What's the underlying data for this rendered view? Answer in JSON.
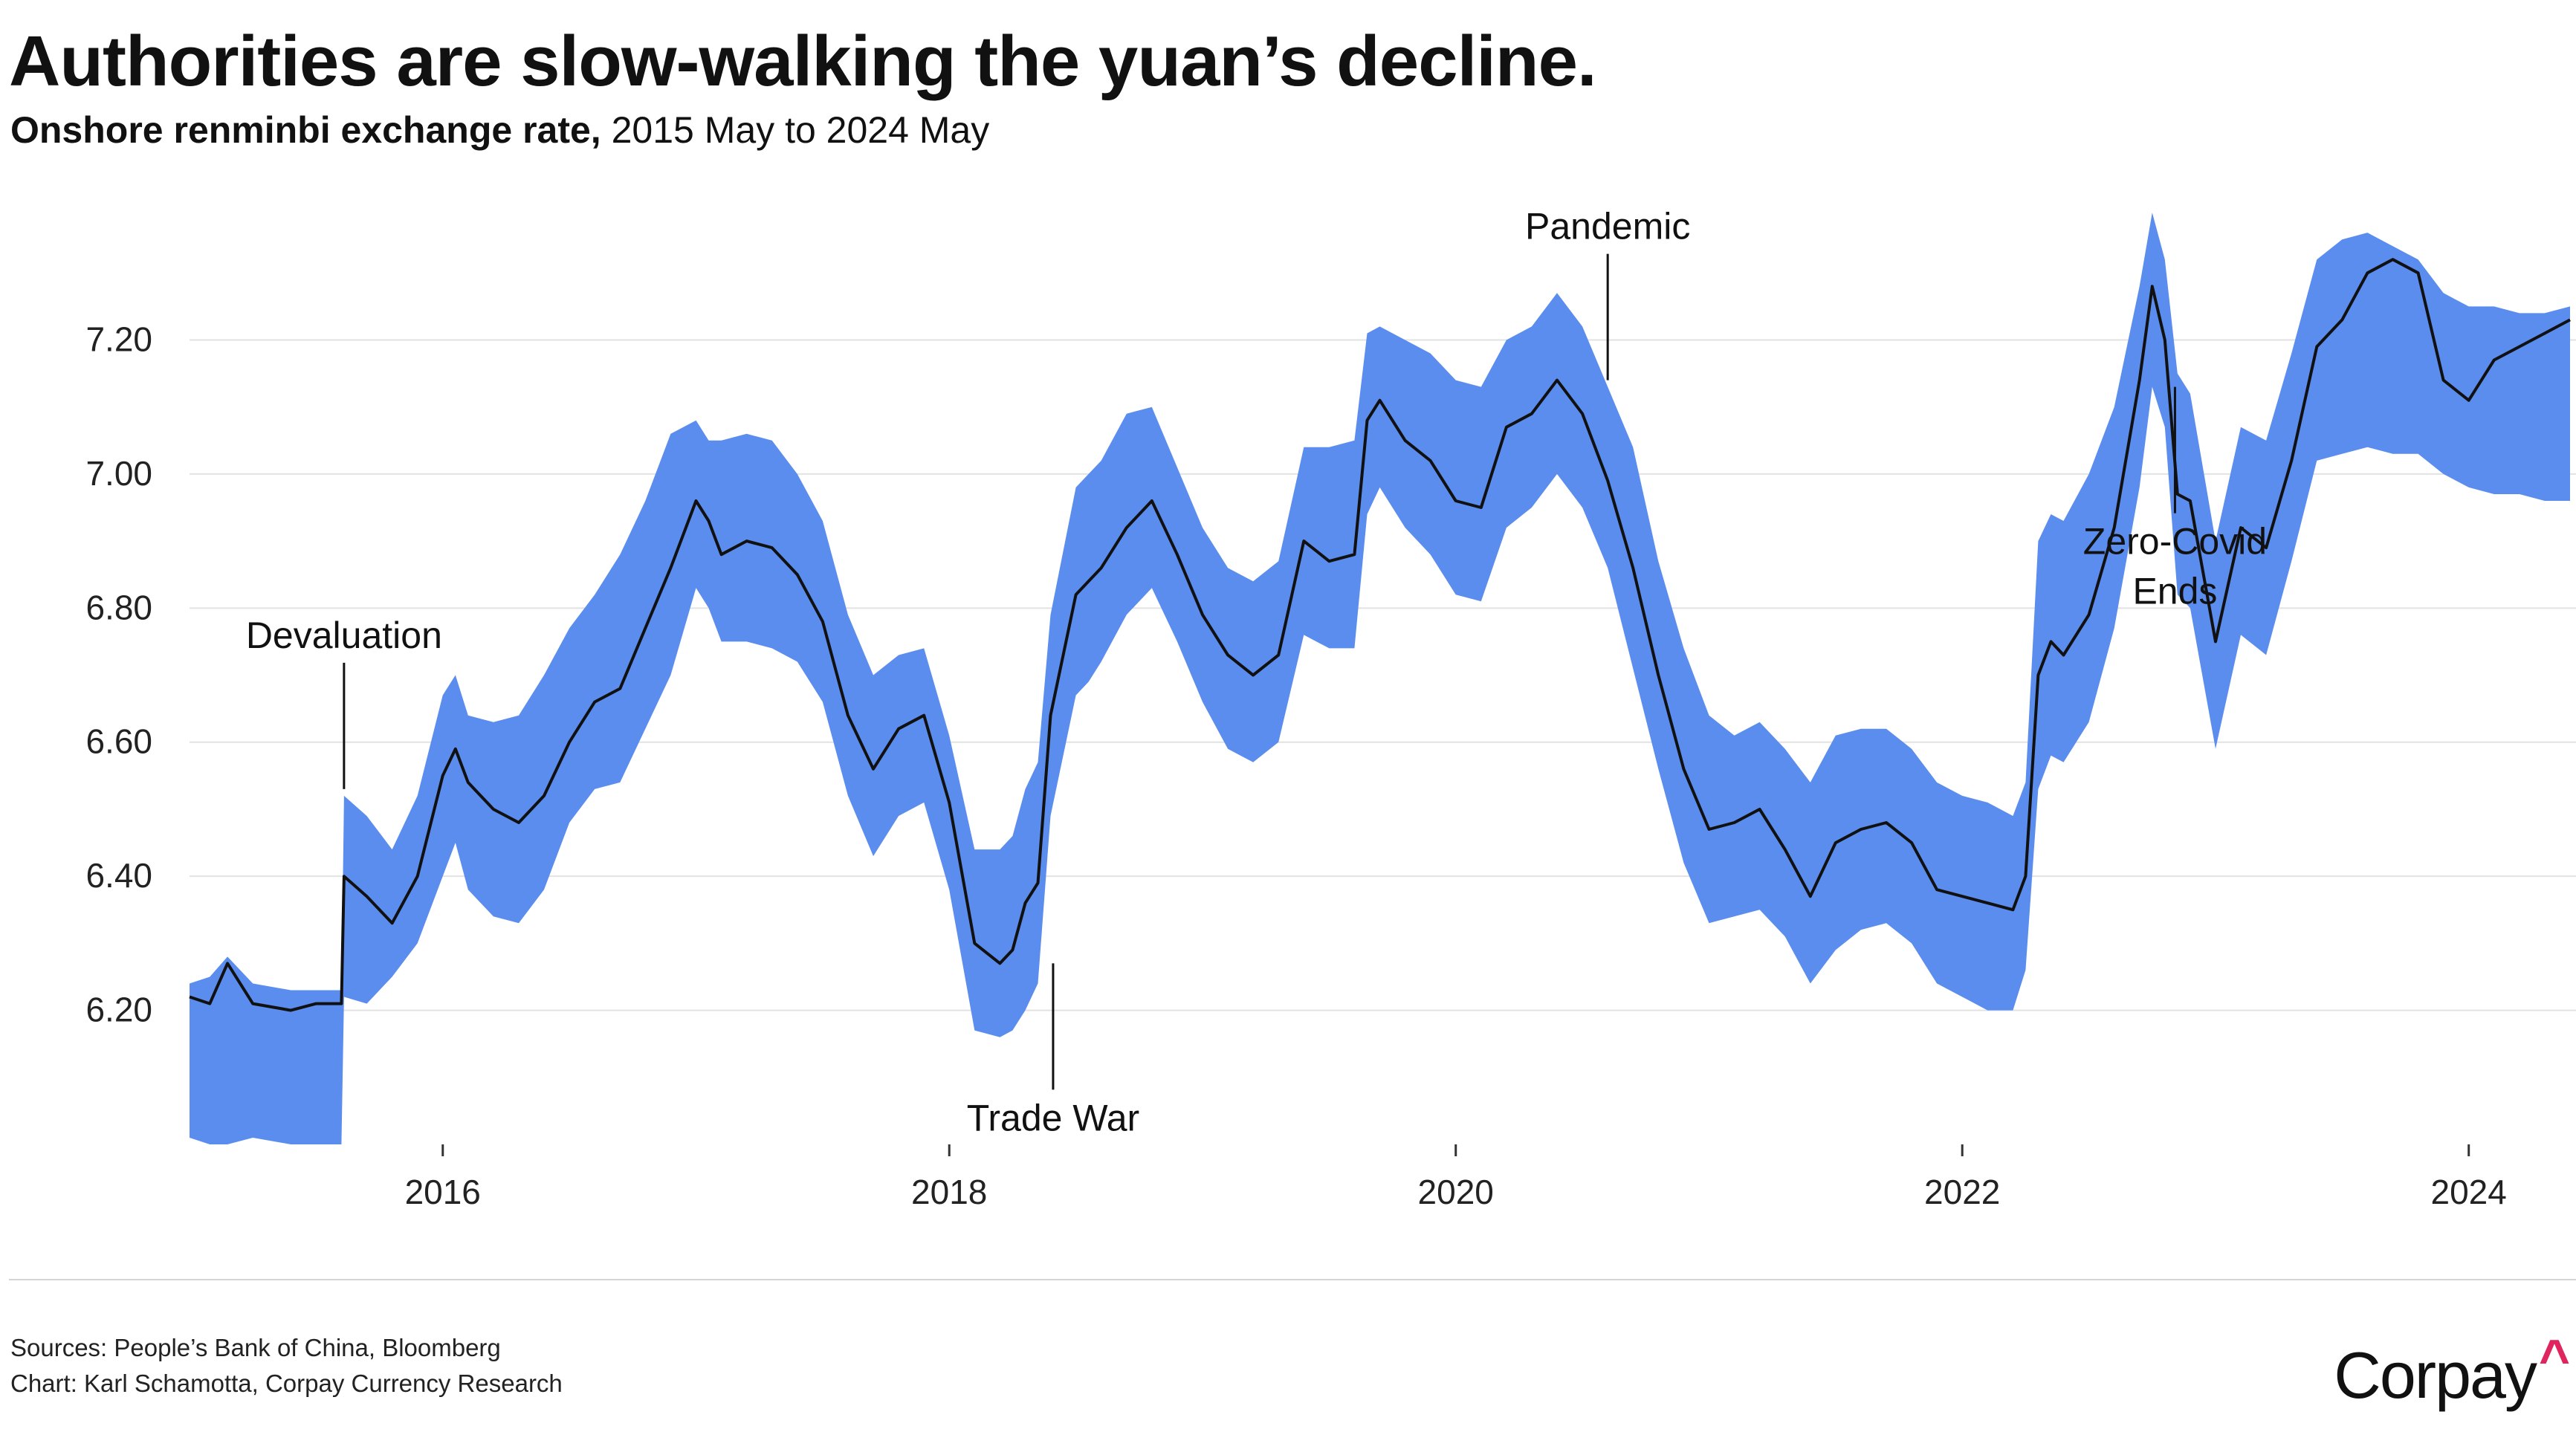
{
  "title": "Authorities are slow-walking the yuan’s decline.",
  "subtitle_bold": "Onshore renminbi exchange rate,",
  "subtitle_rest": "2015 May to 2024 May",
  "sources_line1": "Sources: People’s Bank of China, Bloomberg",
  "sources_line2": "Chart: Karl Schamotta, Corpay Currency Research",
  "logo_text": "Corpay",
  "logo_caret": "^",
  "colors": {
    "band": "#5b8def",
    "line": "#111111",
    "grid": "#e2e2e2",
    "accent": "#e0245e"
  },
  "chart_data": {
    "type": "area",
    "x_unit": "year (decimal)",
    "xlim": [
      2015.0,
      2024.4
    ],
    "ylim": [
      6.0,
      7.43
    ],
    "y_ticks": [
      6.2,
      6.4,
      6.6,
      6.8,
      7.0,
      7.2
    ],
    "y_tick_labels": [
      "6.20",
      "6.40",
      "6.60",
      "6.80",
      "7.00",
      "7.20"
    ],
    "x_ticks": [
      2016,
      2018,
      2020,
      2022,
      2024
    ],
    "x_tick_labels": [
      "2016",
      "2018",
      "2020",
      "2022",
      "2024"
    ],
    "grid": true,
    "legend": "none",
    "series": [
      {
        "kind": "line",
        "x": [
          2015.0,
          2015.08,
          2015.15,
          2015.25,
          2015.4,
          2015.5,
          2015.6,
          2015.61,
          2015.7,
          2015.8,
          2015.9,
          2016.0,
          2016.05,
          2016.1,
          2016.2,
          2016.3,
          2016.4,
          2016.5,
          2016.6,
          2016.7,
          2016.8,
          2016.9,
          2017.0,
          2017.05,
          2017.1,
          2017.2,
          2017.3,
          2017.4,
          2017.5,
          2017.6,
          2017.7,
          2017.8,
          2017.9,
          2018.0,
          2018.1,
          2018.2,
          2018.25,
          2018.3,
          2018.35,
          2018.4,
          2018.5,
          2018.55,
          2018.6,
          2018.7,
          2018.8,
          2018.9,
          2019.0,
          2019.1,
          2019.2,
          2019.3,
          2019.4,
          2019.5,
          2019.6,
          2019.65,
          2019.7,
          2019.8,
          2019.9,
          2020.0,
          2020.1,
          2020.2,
          2020.3,
          2020.4,
          2020.5,
          2020.6,
          2020.7,
          2020.8,
          2020.9,
          2021.0,
          2021.1,
          2021.2,
          2021.3,
          2021.4,
          2021.5,
          2021.6,
          2021.7,
          2021.8,
          2021.9,
          2022.0,
          2022.1,
          2022.2,
          2022.25,
          2022.3,
          2022.35,
          2022.4,
          2022.5,
          2022.6,
          2022.7,
          2022.75,
          2022.8,
          2022.85,
          2022.9,
          2023.0,
          2023.1,
          2023.2,
          2023.3,
          2023.4,
          2023.5,
          2023.6,
          2023.7,
          2023.8,
          2023.9,
          2024.0,
          2024.1,
          2024.2,
          2024.3,
          2024.4
        ],
        "y": [
          6.22,
          6.21,
          6.27,
          6.21,
          6.2,
          6.21,
          6.21,
          6.4,
          6.37,
          6.33,
          6.4,
          6.55,
          6.59,
          6.54,
          6.5,
          6.48,
          6.52,
          6.6,
          6.66,
          6.68,
          6.77,
          6.86,
          6.96,
          6.93,
          6.88,
          6.9,
          6.89,
          6.85,
          6.78,
          6.64,
          6.56,
          6.62,
          6.64,
          6.51,
          6.3,
          6.27,
          6.29,
          6.36,
          6.39,
          6.64,
          6.82,
          6.84,
          6.86,
          6.92,
          6.96,
          6.88,
          6.79,
          6.73,
          6.7,
          6.73,
          6.9,
          6.87,
          6.88,
          7.08,
          7.11,
          7.05,
          7.02,
          6.96,
          6.95,
          7.07,
          7.09,
          7.14,
          7.09,
          6.99,
          6.86,
          6.7,
          6.56,
          6.47,
          6.48,
          6.5,
          6.44,
          6.37,
          6.45,
          6.47,
          6.48,
          6.45,
          6.38,
          6.37,
          6.36,
          6.35,
          6.4,
          6.7,
          6.75,
          6.73,
          6.79,
          6.92,
          7.14,
          7.28,
          7.2,
          6.97,
          6.96,
          6.75,
          6.92,
          6.89,
          7.02,
          7.19,
          7.23,
          7.3,
          7.32,
          7.3,
          7.14,
          7.11,
          7.17,
          7.19,
          7.21,
          7.23
        ]
      },
      {
        "kind": "band",
        "x": [
          2015.0,
          2015.08,
          2015.15,
          2015.25,
          2015.4,
          2015.5,
          2015.6,
          2015.61,
          2015.7,
          2015.8,
          2015.9,
          2016.0,
          2016.05,
          2016.1,
          2016.2,
          2016.3,
          2016.4,
          2016.5,
          2016.6,
          2016.7,
          2016.8,
          2016.9,
          2017.0,
          2017.05,
          2017.1,
          2017.2,
          2017.3,
          2017.4,
          2017.5,
          2017.6,
          2017.7,
          2017.8,
          2017.9,
          2018.0,
          2018.1,
          2018.2,
          2018.25,
          2018.3,
          2018.35,
          2018.4,
          2018.5,
          2018.55,
          2018.6,
          2018.7,
          2018.8,
          2018.9,
          2019.0,
          2019.1,
          2019.2,
          2019.3,
          2019.4,
          2019.5,
          2019.6,
          2019.65,
          2019.7,
          2019.8,
          2019.9,
          2020.0,
          2020.1,
          2020.2,
          2020.3,
          2020.4,
          2020.5,
          2020.6,
          2020.7,
          2020.8,
          2020.9,
          2021.0,
          2021.1,
          2021.2,
          2021.3,
          2021.4,
          2021.5,
          2021.6,
          2021.7,
          2021.8,
          2021.9,
          2022.0,
          2022.1,
          2022.2,
          2022.25,
          2022.3,
          2022.35,
          2022.4,
          2022.5,
          2022.6,
          2022.7,
          2022.75,
          2022.8,
          2022.85,
          2022.9,
          2023.0,
          2023.1,
          2023.2,
          2023.3,
          2023.4,
          2023.5,
          2023.6,
          2023.7,
          2023.8,
          2023.9,
          2024.0,
          2024.1,
          2024.2,
          2024.3,
          2024.4
        ],
        "upper": [
          6.24,
          6.25,
          6.28,
          6.24,
          6.23,
          6.23,
          6.23,
          6.52,
          6.49,
          6.44,
          6.52,
          6.67,
          6.7,
          6.64,
          6.63,
          6.64,
          6.7,
          6.77,
          6.82,
          6.88,
          6.96,
          7.06,
          7.08,
          7.05,
          7.05,
          7.06,
          7.05,
          7.0,
          6.93,
          6.79,
          6.7,
          6.73,
          6.74,
          6.61,
          6.44,
          6.44,
          6.46,
          6.53,
          6.57,
          6.79,
          6.98,
          7.0,
          7.02,
          7.09,
          7.1,
          7.01,
          6.92,
          6.86,
          6.84,
          6.87,
          7.04,
          7.04,
          7.05,
          7.21,
          7.22,
          7.2,
          7.18,
          7.14,
          7.13,
          7.2,
          7.22,
          7.27,
          7.22,
          7.13,
          7.04,
          6.87,
          6.74,
          6.64,
          6.61,
          6.63,
          6.59,
          6.54,
          6.61,
          6.62,
          6.62,
          6.59,
          6.54,
          6.52,
          6.51,
          6.49,
          6.54,
          6.9,
          6.94,
          6.93,
          7.0,
          7.1,
          7.28,
          7.39,
          7.32,
          7.15,
          7.12,
          6.9,
          7.07,
          7.05,
          7.18,
          7.32,
          7.35,
          7.36,
          7.34,
          7.32,
          7.27,
          7.25,
          7.25,
          7.24,
          7.24,
          7.25
        ],
        "lower": [
          6.01,
          6.0,
          6.0,
          6.01,
          6.0,
          6.0,
          6.0,
          6.22,
          6.21,
          6.25,
          6.3,
          6.4,
          6.45,
          6.38,
          6.34,
          6.33,
          6.38,
          6.48,
          6.53,
          6.54,
          6.62,
          6.7,
          6.83,
          6.8,
          6.75,
          6.75,
          6.74,
          6.72,
          6.66,
          6.52,
          6.43,
          6.49,
          6.51,
          6.38,
          6.17,
          6.16,
          6.17,
          6.2,
          6.24,
          6.49,
          6.67,
          6.69,
          6.72,
          6.79,
          6.83,
          6.75,
          6.66,
          6.59,
          6.57,
          6.6,
          6.76,
          6.74,
          6.74,
          6.94,
          6.98,
          6.92,
          6.88,
          6.82,
          6.81,
          6.92,
          6.95,
          7.0,
          6.95,
          6.86,
          6.71,
          6.56,
          6.42,
          6.33,
          6.34,
          6.35,
          6.31,
          6.24,
          6.29,
          6.32,
          6.33,
          6.3,
          6.24,
          6.22,
          6.2,
          6.2,
          6.26,
          6.53,
          6.58,
          6.57,
          6.63,
          6.77,
          6.98,
          7.13,
          7.07,
          6.82,
          6.8,
          6.59,
          6.76,
          6.73,
          6.87,
          7.02,
          7.03,
          7.04,
          7.03,
          7.03,
          7.0,
          6.98,
          6.97,
          6.97,
          6.96,
          6.96
        ]
      }
    ],
    "annotations": [
      {
        "text": "Devaluation",
        "x": 2015.61,
        "y_end": 6.53,
        "label_pos": "above"
      },
      {
        "text": "Trade War",
        "x": 2018.41,
        "y_end": 6.27,
        "label_pos": "below"
      },
      {
        "text": "Pandemic",
        "x": 2020.6,
        "y_end": 7.14,
        "label_pos": "above"
      },
      {
        "text": "Zero-Covid",
        "text2": "Ends",
        "x": 2022.84,
        "y_end": 7.13,
        "label_pos": "below"
      }
    ]
  }
}
